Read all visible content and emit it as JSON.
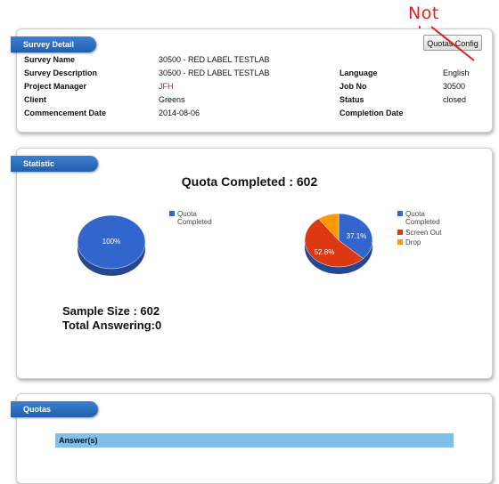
{
  "annotation": "Not shown",
  "survey_detail": {
    "title": "Survey Detail",
    "quotas_config_button": "Quotas Config",
    "left_fields": [
      {
        "label": "Survey Name",
        "value": "30500 - RED LABEL TESTLAB"
      },
      {
        "label": "Survey Description",
        "value": "30500 - RED LABEL TESTLAB"
      },
      {
        "label": "Project Manager",
        "value": "JFH"
      },
      {
        "label": "Client",
        "value": "Greens"
      },
      {
        "label": "Commencement Date",
        "value": "2014-08-06"
      }
    ],
    "right_fields": [
      {
        "label": "Language",
        "value": "English"
      },
      {
        "label": "Job No",
        "value": "30500"
      },
      {
        "label": "Status",
        "value": "closed"
      },
      {
        "label": "Completion Date",
        "value": ""
      }
    ]
  },
  "statistic": {
    "title": "Statistic",
    "quota_completed": "Quota Completed : 602",
    "sample_size": "Sample Size : 602",
    "total_answering": "Total Answering:0",
    "colors": {
      "quota": "#3366cc",
      "screen": "#dc3912",
      "drop": "#ff9900"
    },
    "pie1": {
      "slices": [
        {
          "label": "Quota Completed",
          "value": 100
        }
      ],
      "slice_label": "100%",
      "legend": [
        {
          "name": "Quota Completed",
          "color": "#3366cc"
        }
      ]
    },
    "pie2": {
      "slices": [
        {
          "label": "Quota Completed",
          "value": 37.1
        },
        {
          "label": "Screen Out",
          "value": 52.8
        },
        {
          "label": "Drop",
          "value": 10.1
        }
      ],
      "labels": [
        "37.1%",
        "52.8%"
      ],
      "legend": [
        {
          "name": "Quota Completed",
          "color": "#3366cc"
        },
        {
          "name": "Screen Out",
          "color": "#dc3912"
        },
        {
          "name": "Drop",
          "color": "#ff9900"
        }
      ]
    }
  },
  "quotas": {
    "title": "Quotas",
    "table_header": "Answer(s)"
  }
}
